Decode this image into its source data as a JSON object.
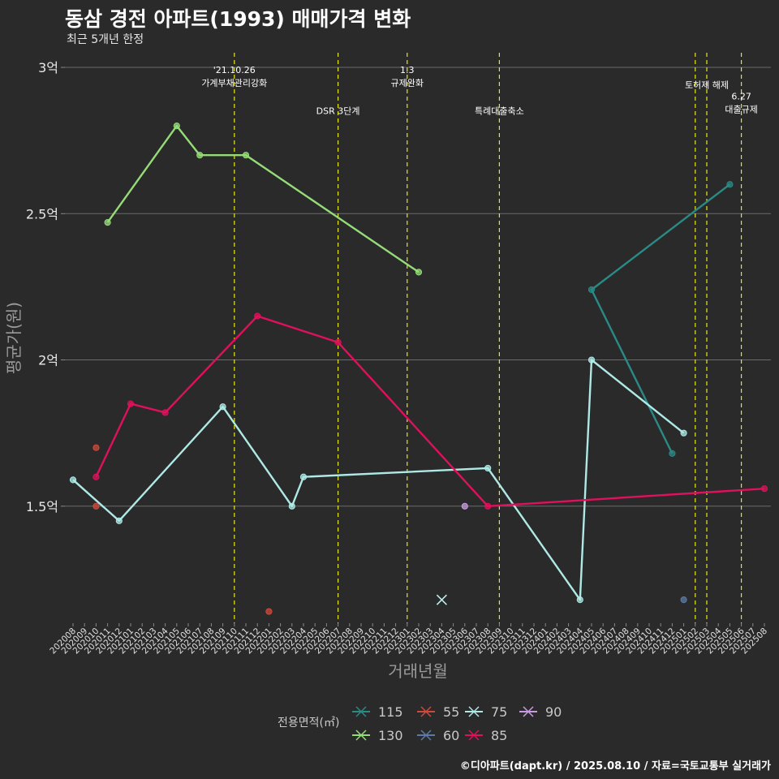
{
  "title": "동삼 경전 아파트(1993) 매매가격 변화",
  "subtitle": "최근 5개년 한정",
  "caption": "©디아파트(dapt.kr) / 2025.08.10 / 자료=국토교통부 실거래가",
  "chart_data": {
    "type": "line",
    "xlabel": "거래년월",
    "ylabel": "평균가(원)",
    "categories": [
      "202008",
      "202009",
      "202010",
      "202011",
      "202012",
      "202101",
      "202102",
      "202103",
      "202104",
      "202105",
      "202106",
      "202107",
      "202108",
      "202109",
      "202110",
      "202111",
      "202112",
      "202201",
      "202202",
      "202203",
      "202204",
      "202205",
      "202206",
      "202207",
      "202208",
      "202209",
      "202210",
      "202211",
      "202212",
      "202301",
      "202302",
      "202303",
      "202304",
      "202305",
      "202306",
      "202307",
      "202308",
      "202309",
      "202310",
      "202311",
      "202312",
      "202401",
      "202402",
      "202403",
      "202404",
      "202405",
      "202406",
      "202407",
      "202408",
      "202409",
      "202410",
      "202411",
      "202412",
      "202501",
      "202502",
      "202503",
      "202504",
      "202505",
      "202506",
      "202507",
      "202508"
    ],
    "ylim": [
      1.1,
      3.05
    ],
    "yticks": [
      {
        "v": 1.5,
        "label": "1.5억"
      },
      {
        "v": 2,
        "label": "2억"
      },
      {
        "v": 2.5,
        "label": "2.5억"
      },
      {
        "v": 3,
        "label": "3억"
      }
    ],
    "grid": true,
    "legend_title": "전용면적(㎡)",
    "legend_position": "bottom",
    "legend_order": [
      "115",
      "55",
      "75",
      "90",
      "130",
      "60",
      "85"
    ],
    "series": [
      {
        "name": "115",
        "color": "#2a8a85",
        "line": true,
        "points": [
          [
            "202505",
            2.6
          ],
          [
            "202405",
            2.24
          ],
          [
            "202412",
            1.68
          ]
        ]
      },
      {
        "name": "130",
        "color": "#95dc79",
        "line": true,
        "points": [
          [
            "202011",
            2.47
          ],
          [
            "202105",
            2.8
          ],
          [
            "202107",
            2.7
          ],
          [
            "202111",
            2.7
          ],
          [
            "202302",
            2.3
          ]
        ]
      },
      {
        "name": "55",
        "color": "#cf4a3c",
        "line": false,
        "points": [
          [
            "202010",
            1.7
          ],
          [
            "202010",
            1.5
          ],
          [
            "202201",
            1.14
          ]
        ]
      },
      {
        "name": "60",
        "color": "#5b7aa6",
        "line": false,
        "points": [
          [
            "202501",
            1.18
          ]
        ]
      },
      {
        "name": "75",
        "color": "#aee9e6",
        "line": true,
        "points": [
          [
            "202008",
            1.59
          ],
          [
            "202012",
            1.45
          ],
          [
            "202109",
            1.84
          ],
          [
            "202203",
            1.5
          ],
          [
            "202204",
            1.6
          ],
          [
            "202308",
            1.63
          ],
          [
            "202404",
            1.18
          ],
          [
            "202405",
            2.0
          ],
          [
            "202501",
            1.75
          ]
        ]
      },
      {
        "name": "85",
        "color": "#e0105c",
        "line": true,
        "points": [
          [
            "202010",
            1.6
          ],
          [
            "202101",
            1.85
          ],
          [
            "202104",
            1.82
          ],
          [
            "202112",
            2.15
          ],
          [
            "202207",
            2.06
          ],
          [
            "202308",
            1.5
          ],
          [
            "202508",
            1.56
          ]
        ]
      },
      {
        "name": "90",
        "color": "#c89be0",
        "line": false,
        "points": [
          [
            "202306",
            1.5
          ]
        ]
      }
    ],
    "markers": [
      {
        "x": "202304",
        "y": 1.18,
        "color": "#bfeeee"
      }
    ],
    "annotations": [
      {
        "x": "202110",
        "lines": [
          "'21.10.26",
          "가계부채관리강화"
        ],
        "y": 2.98
      },
      {
        "x": "202207",
        "lines": [
          "DSR 3단계"
        ],
        "y": 2.84
      },
      {
        "x": "202301",
        "lines": [
          "1.3",
          "규제완화"
        ],
        "y": 2.98
      },
      {
        "x": "202309",
        "lines": [
          "특례대출축소"
        ],
        "y": 2.84
      },
      {
        "x": "202502",
        "lines": [],
        "y": 2.93
      },
      {
        "x": "202503",
        "lines": [
          "토허제 해제"
        ],
        "y": 2.93
      },
      {
        "x": "202506",
        "lines": [
          "6.27",
          "대출규제"
        ],
        "y": 2.89
      }
    ]
  }
}
